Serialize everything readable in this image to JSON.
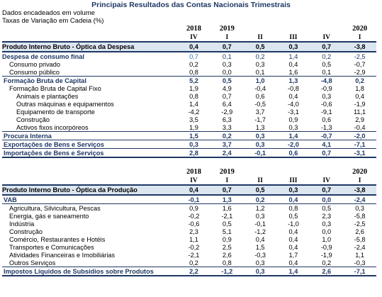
{
  "title": "Principais Resultados das Contas Nacionais Trimestrais",
  "subtitle1": "Dados encadeados em volume",
  "subtitle2": "Taxas de Variação em Cadeia (%)",
  "years": [
    "2018",
    "2019",
    "",
    "",
    "",
    "2020"
  ],
  "quarters": [
    "IV",
    "I",
    "II",
    "III",
    "IV",
    "I"
  ],
  "table1": {
    "rows": [
      {
        "label": "Produto Interno Bruto - Óptica da Despesa",
        "style": "main",
        "values": [
          "0,4",
          "0,7",
          "0,5",
          "0,3",
          "0,7",
          "-3,8"
        ]
      },
      {
        "label": "Despesa de consumo final",
        "style": "sect",
        "values": [
          "0,7",
          "0,1",
          "0,2",
          "1,4",
          "0,2",
          "-2,5"
        ]
      },
      {
        "label": "Consumo privado",
        "style": "lvl1",
        "values": [
          "0,2",
          "0,3",
          "0,3",
          "0,4",
          "0,5",
          "-0,7"
        ]
      },
      {
        "label": "Consumo público",
        "style": "lvl1 bb",
        "values": [
          "0,8",
          "0,0",
          "0,1",
          "1,6",
          "0,1",
          "-2,9"
        ]
      },
      {
        "label": "Formação Bruta de Capital",
        "style": "hl",
        "values": [
          "5,2",
          "0,5",
          "1,0",
          "1,3",
          "-4,8",
          "0,2"
        ]
      },
      {
        "label": "Formação Bruta de Capital Fixo",
        "style": "lvl1",
        "values": [
          "1,9",
          "4,9",
          "-0,4",
          "-0,8",
          "-0,9",
          "1,8"
        ]
      },
      {
        "label": "Animais e plantações",
        "style": "lvl2",
        "values": [
          "0,8",
          "0,7",
          "0,6",
          "0,4",
          "0,3",
          "0,4"
        ]
      },
      {
        "label": "Outras máquinas e equipamentos",
        "style": "lvl2",
        "values": [
          "1,4",
          "6,4",
          "-0,5",
          "-4,0",
          "-0,6",
          "-1,9"
        ]
      },
      {
        "label": "Equipamento de transporte",
        "style": "lvl2",
        "values": [
          "-4,2",
          "-2,9",
          "3,7",
          "-3,1",
          "-9,1",
          "11,1"
        ]
      },
      {
        "label": "Construção",
        "style": "lvl2",
        "values": [
          "3,5",
          "6,3",
          "-1,7",
          "0,9",
          "0,6",
          "2,9"
        ]
      },
      {
        "label": "Activos fixos incorpóreos",
        "style": "lvl2 bb",
        "values": [
          "1,9",
          "3,3",
          "1,3",
          "0,3",
          "-1,3",
          "-0,4"
        ]
      },
      {
        "label": "Procura Interna",
        "style": "hl bb",
        "values": [
          "1,5",
          "0,2",
          "0,3",
          "1,4",
          "-0,7",
          "-2,0"
        ]
      },
      {
        "label": "Exportações de Bens e Serviços",
        "style": "hl bb",
        "values": [
          "0,3",
          "3,7",
          "0,3",
          "-2,0",
          "4,1",
          "-7,1"
        ]
      },
      {
        "label": "Importações de Bens e Serviços",
        "style": "hl bbd",
        "values": [
          "2,8",
          "2,4",
          "-0,1",
          "0,6",
          "0,7",
          "-3,1"
        ]
      }
    ]
  },
  "table2": {
    "rows": [
      {
        "label": "Produto Interno Bruto - Óptica da Produção",
        "style": "main",
        "values": [
          "0,4",
          "0,7",
          "0,5",
          "0,3",
          "0,7",
          "-3,8"
        ]
      },
      {
        "label": "VAB",
        "style": "hl bb",
        "values": [
          "-0,1",
          "1,3",
          "0,2",
          "0,4",
          "0,0",
          "-2,4"
        ]
      },
      {
        "label": "Agricultura, Silvicultura, Pescas",
        "style": "lvl1",
        "values": [
          "0,9",
          "1,6",
          "1,2",
          "0,8",
          "0,5",
          "0,3"
        ]
      },
      {
        "label": "Energia, gás e saneamento",
        "style": "lvl1",
        "values": [
          "-0,2",
          "-2,1",
          "0,3",
          "0,5",
          "2,3",
          "-5,8"
        ]
      },
      {
        "label": "Indústria",
        "style": "lvl1",
        "values": [
          "-0,6",
          "0,5",
          "-0,1",
          "-1,0",
          "0,3",
          "-2,5"
        ]
      },
      {
        "label": "Construção",
        "style": "lvl1",
        "values": [
          "2,3",
          "5,1",
          "-1,2",
          "0,4",
          "0,0",
          "2,6"
        ]
      },
      {
        "label": "Comércio, Restaurantes e Hotéis",
        "style": "lvl1",
        "values": [
          "1,1",
          "0,9",
          "0,4",
          "0,4",
          "1,0",
          "-5,8"
        ]
      },
      {
        "label": "Transportes e Comunicações",
        "style": "lvl1",
        "values": [
          "-0,2",
          "2,5",
          "1,5",
          "0,4",
          "-0,9",
          "-2,4"
        ]
      },
      {
        "label": "Atividades Financeiras e Imobiliárias",
        "style": "lvl1",
        "values": [
          "-2,1",
          "2,6",
          "-0,3",
          "1,7",
          "-1,9",
          "1,1"
        ]
      },
      {
        "label": "Outros Serviços",
        "style": "lvl1 bb",
        "values": [
          "0,2",
          "0,8",
          "0,3",
          "0,4",
          "0,2",
          "-0,3"
        ]
      },
      {
        "label": "Impostos Líquidos de Subsídios sobre Produtos",
        "style": "hl bbd",
        "values": [
          "2,2",
          "-1,2",
          "0,3",
          "1,4",
          "2,6",
          "-7,1"
        ]
      }
    ]
  },
  "colors": {
    "accent": "#1f3864",
    "band": "#dce6f1",
    "soft": "#2e75b6"
  }
}
